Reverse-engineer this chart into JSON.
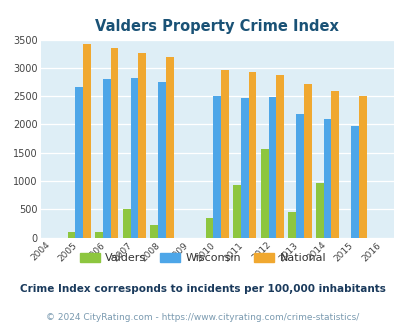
{
  "title": "Valders Property Crime Index",
  "all_years": [
    2004,
    2005,
    2006,
    2007,
    2008,
    2009,
    2010,
    2011,
    2012,
    2013,
    2014,
    2015,
    2016
  ],
  "data_years": [
    2005,
    2006,
    2007,
    2008,
    2010,
    2011,
    2012,
    2013,
    2014,
    2015
  ],
  "valders": [
    100,
    100,
    500,
    230,
    350,
    930,
    1570,
    460,
    960,
    0
  ],
  "wisconsin": [
    2670,
    2810,
    2830,
    2750,
    2510,
    2460,
    2490,
    2180,
    2090,
    1980
  ],
  "national": [
    3420,
    3350,
    3270,
    3200,
    2960,
    2920,
    2870,
    2720,
    2600,
    2500
  ],
  "valders_color": "#8dc63f",
  "wisconsin_color": "#4da6e8",
  "national_color": "#f0a830",
  "bg_color": "#deeef6",
  "title_color": "#1a5276",
  "grid_color": "#ffffff",
  "ylim": [
    0,
    3500
  ],
  "yticks": [
    0,
    500,
    1000,
    1500,
    2000,
    2500,
    3000,
    3500
  ],
  "footnote1": "Crime Index corresponds to incidents per 100,000 inhabitants",
  "footnote2": "© 2024 CityRating.com - https://www.cityrating.com/crime-statistics/",
  "footnote1_color": "#1a3a5c",
  "footnote2_color": "#7a9ab0"
}
